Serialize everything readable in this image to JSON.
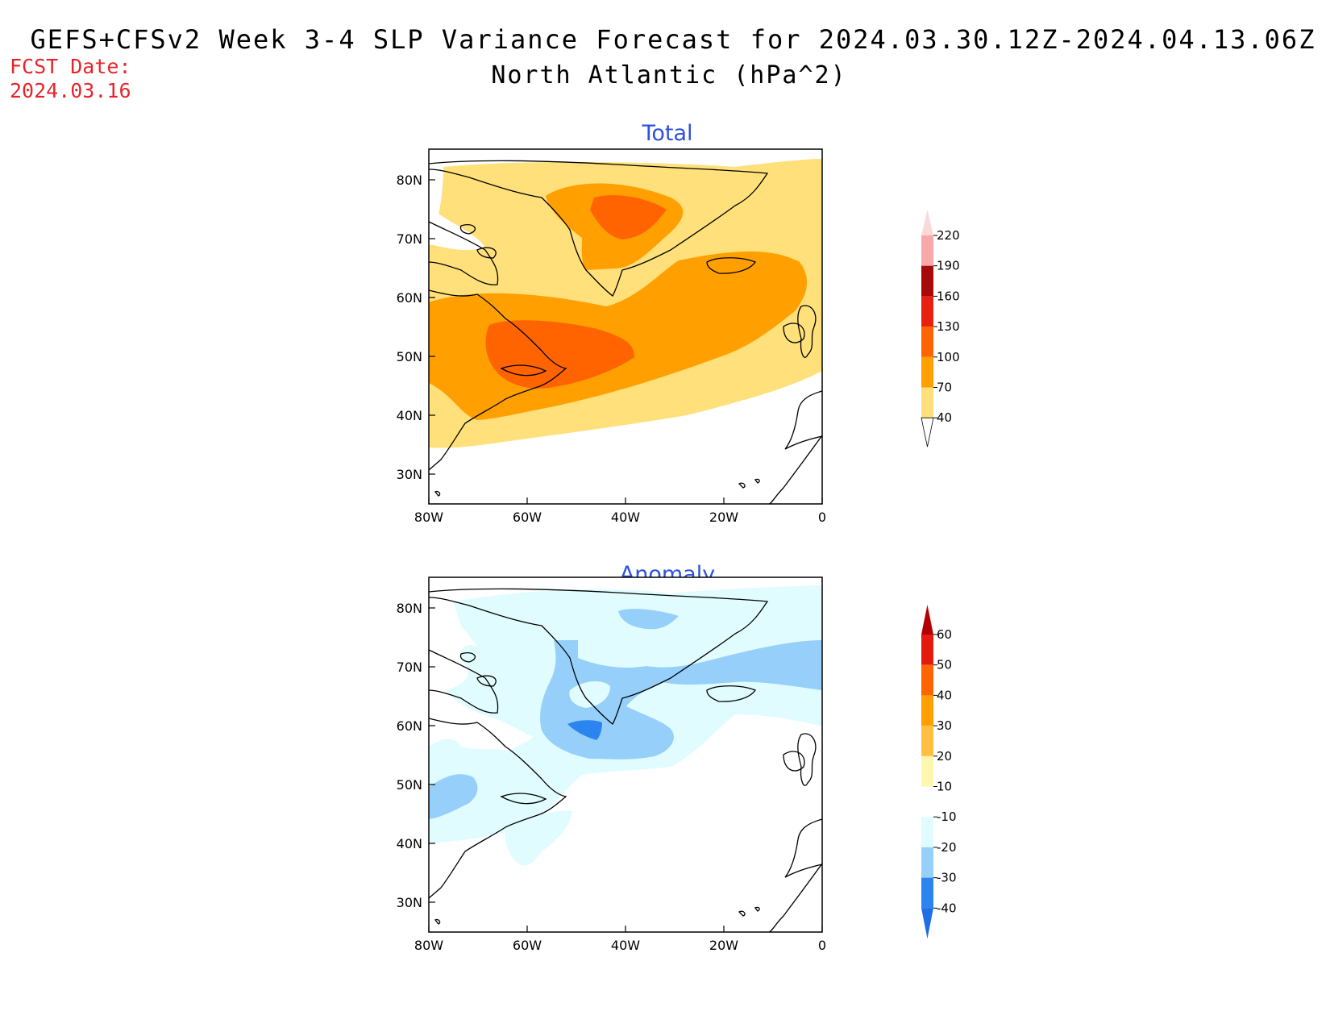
{
  "header": {
    "title_line1": "GEFS+CFSv2 Week 3-4 SLP Variance Forecast for 2024.03.30.12Z-2024.04.13.06Z",
    "title_line2": "North Atlantic (hPa^2)",
    "fcst_label": "FCST Date:",
    "fcst_value": "2024.03.16"
  },
  "axes": {
    "lat_ticks": [
      "80N",
      "70N",
      "60N",
      "50N",
      "40N",
      "30N"
    ],
    "lon_ticks": [
      "80W",
      "60W",
      "40W",
      "20W",
      "0"
    ]
  },
  "panels": [
    {
      "title": "Total",
      "colorbar": {
        "labels": [
          "220",
          "190",
          "160",
          "130",
          "100",
          "70",
          "40"
        ],
        "colors": [
          "#f7a8a8",
          "#a80a0a",
          "#e82010",
          "#ff6400",
          "#ffa000",
          "#ffe07a"
        ],
        "top_color": "#fdd8d8"
      }
    },
    {
      "title": "Anomaly",
      "colorbar": {
        "labels": [
          "60",
          "50",
          "40",
          "30",
          "20",
          "10",
          "-10",
          "-20",
          "-30",
          "-40"
        ],
        "colors": [
          "#e41a0f",
          "#ff6400",
          "#ffa000",
          "#ffc040",
          "#fff7b0",
          "#ffffff",
          "#e0fcff",
          "#96d0fa",
          "#2b84f0"
        ],
        "top_color": "#b30000",
        "bottom_color": "#1e6ee6"
      }
    }
  ],
  "legend_colors": {
    "total_40_70": "#ffe07a",
    "total_70_100": "#ffa000",
    "total_100_130": "#ff6400",
    "anom_-10_-20": "#e0fcff",
    "anom_-20_-30": "#96d0fa",
    "anom_-30_-40": "#2b84f0"
  }
}
